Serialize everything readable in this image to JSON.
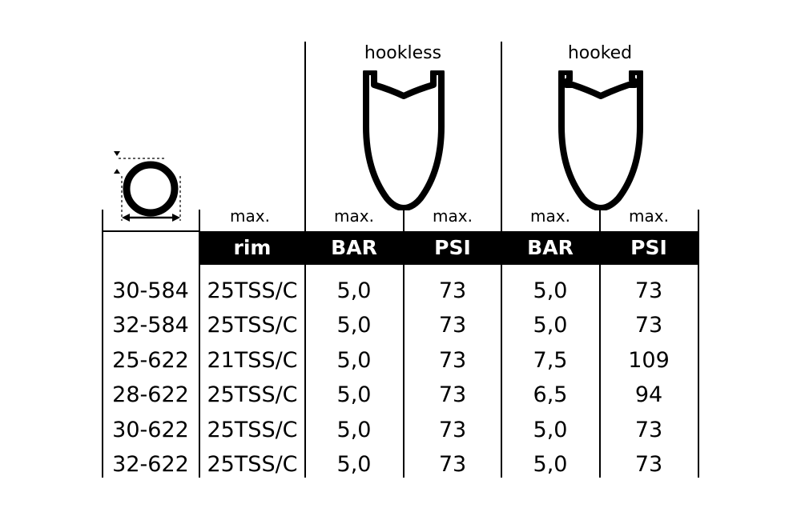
{
  "headers": {
    "hookless": "hookless",
    "hooked": "hooked"
  },
  "max_labels": [
    "max.",
    "max.",
    "max.",
    "max.",
    "max."
  ],
  "units": [
    "rim",
    "BAR",
    "PSI",
    "BAR",
    "PSI"
  ],
  "rows": [
    [
      "30-584",
      "25TSS/C",
      "5,0",
      "73",
      "5,0",
      "73"
    ],
    [
      "32-584",
      "25TSS/C",
      "5,0",
      "73",
      "5,0",
      "73"
    ],
    [
      "25-622",
      "21TSS/C",
      "5,0",
      "73",
      "7,5",
      "109"
    ],
    [
      "28-622",
      "25TSS/C",
      "5,0",
      "73",
      "6,5",
      "94"
    ],
    [
      "30-622",
      "25TSS/C",
      "5,0",
      "73",
      "5,0",
      "73"
    ],
    [
      "32-622",
      "25TSS/C",
      "5,0",
      "73",
      "5,0",
      "73"
    ]
  ],
  "icons": {
    "tire": "tire-cross-section-icon",
    "hookless_rim": "hookless-rim-profile-icon",
    "hooked_rim": "hooked-rim-profile-icon"
  }
}
